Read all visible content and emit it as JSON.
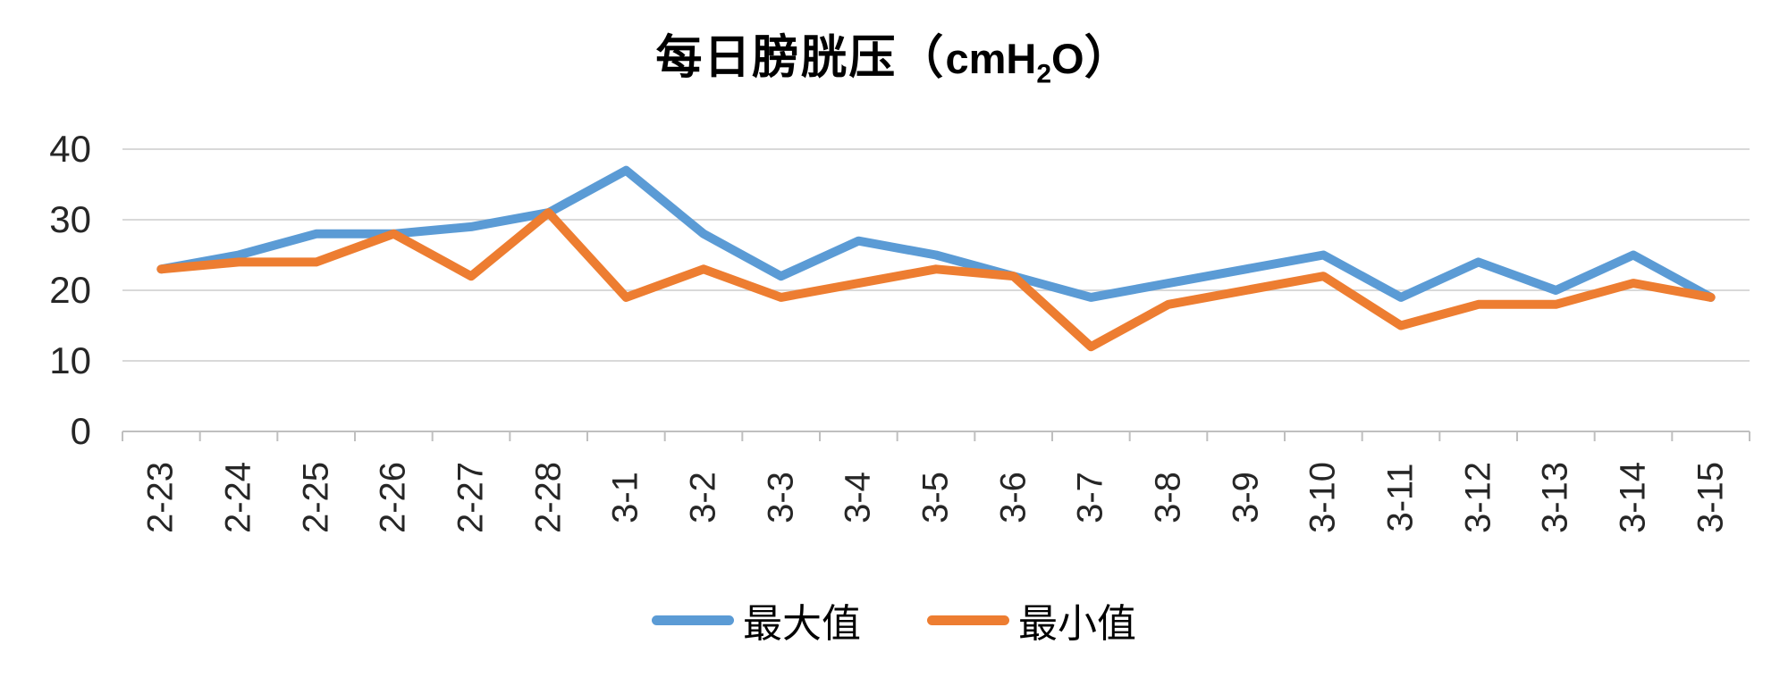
{
  "title": {
    "part1": "每日膀胱压（",
    "latin1": "cmH",
    "sub": "2",
    "latin2": "O",
    "part2": "）"
  },
  "chart_data": {
    "type": "line",
    "title": "每日膀胱压（cmH2O）",
    "categories": [
      "2-23",
      "2-24",
      "2-25",
      "2-26",
      "2-27",
      "2-28",
      "3-1",
      "3-2",
      "3-3",
      "3-4",
      "3-5",
      "3-6",
      "3-7",
      "3-8",
      "3-9",
      "3-10",
      "3-11",
      "3-12",
      "3-13",
      "3-14",
      "3-15"
    ],
    "series": [
      {
        "name": "最大值",
        "color": "#5B9BD5",
        "values": [
          23,
          25,
          28,
          28,
          29,
          31,
          37,
          28,
          22,
          27,
          25,
          22,
          19,
          21,
          23,
          25,
          19,
          24,
          20,
          25,
          19
        ]
      },
      {
        "name": "最小值",
        "color": "#ED7D31",
        "values": [
          23,
          24,
          24,
          28,
          22,
          31,
          19,
          23,
          19,
          21,
          23,
          22,
          12,
          18,
          20,
          22,
          15,
          18,
          18,
          21,
          19
        ]
      }
    ],
    "y_axis": {
      "ticks": [
        40,
        30,
        20,
        10,
        0
      ],
      "min": 0,
      "max": 40
    },
    "x_axis_label_rotation": -90,
    "grid": true,
    "legend_position": "bottom",
    "colors": {
      "gridline": "#D9D9D9",
      "axis": "#BFBFBF",
      "tick_text": "#262626"
    }
  }
}
